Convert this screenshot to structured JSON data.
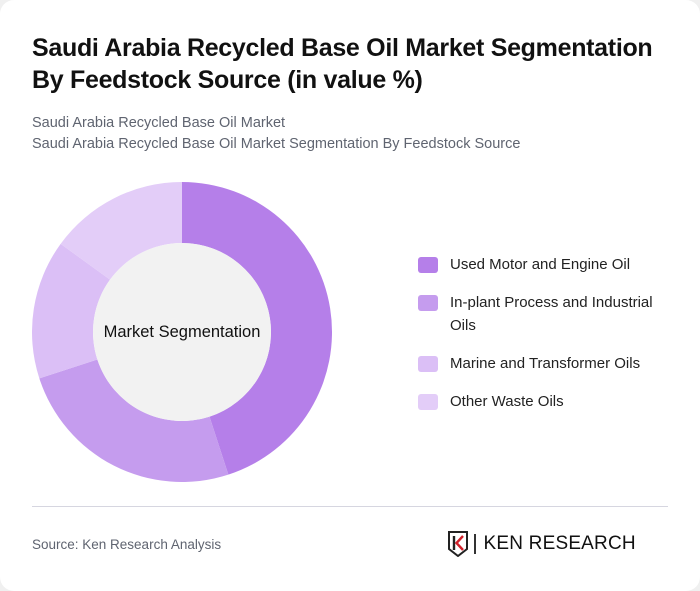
{
  "header": {
    "title": "Saudi Arabia Recycled Base Oil Market Segmentation By Feedstock Source (in value %)",
    "subtitle_line1": "Saudi Arabia Recycled Base Oil Market",
    "subtitle_line2": "Saudi Arabia Recycled Base Oil Market Segmentation By Feedstock Source"
  },
  "chart": {
    "center_label": "Market Segmentation"
  },
  "legend": {
    "items": [
      {
        "label": "Used Motor and Engine Oil",
        "color": "#b57fe9"
      },
      {
        "label": "In-plant Process and Industrial Oils",
        "color": "#c59cee"
      },
      {
        "label": "Marine and Transformer Oils",
        "color": "#dbbff6"
      },
      {
        "label": "Other Waste Oils",
        "color": "#e3cdf8"
      }
    ]
  },
  "footer": {
    "source": "Source: Ken Research Analysis",
    "logo_text": "KEN RESEARCH"
  },
  "chart_data": {
    "type": "pie",
    "variant": "donut",
    "title": "Saudi Arabia Recycled Base Oil Market Segmentation By Feedstock Source (in value %)",
    "subtitle": "Saudi Arabia Recycled Base Oil Market Segmentation By Feedstock Source",
    "center_label": "Market Segmentation",
    "categories": [
      "Used Motor and Engine Oil",
      "In-plant Process and Industrial Oils",
      "Marine and Transformer Oils",
      "Other Waste Oils"
    ],
    "values": [
      45,
      25,
      15,
      15
    ],
    "unit": "%",
    "colors": [
      "#b57fe9",
      "#c59cee",
      "#dbbff6",
      "#e3cdf8"
    ],
    "legend_position": "right",
    "start_angle": "top, clockwise"
  }
}
